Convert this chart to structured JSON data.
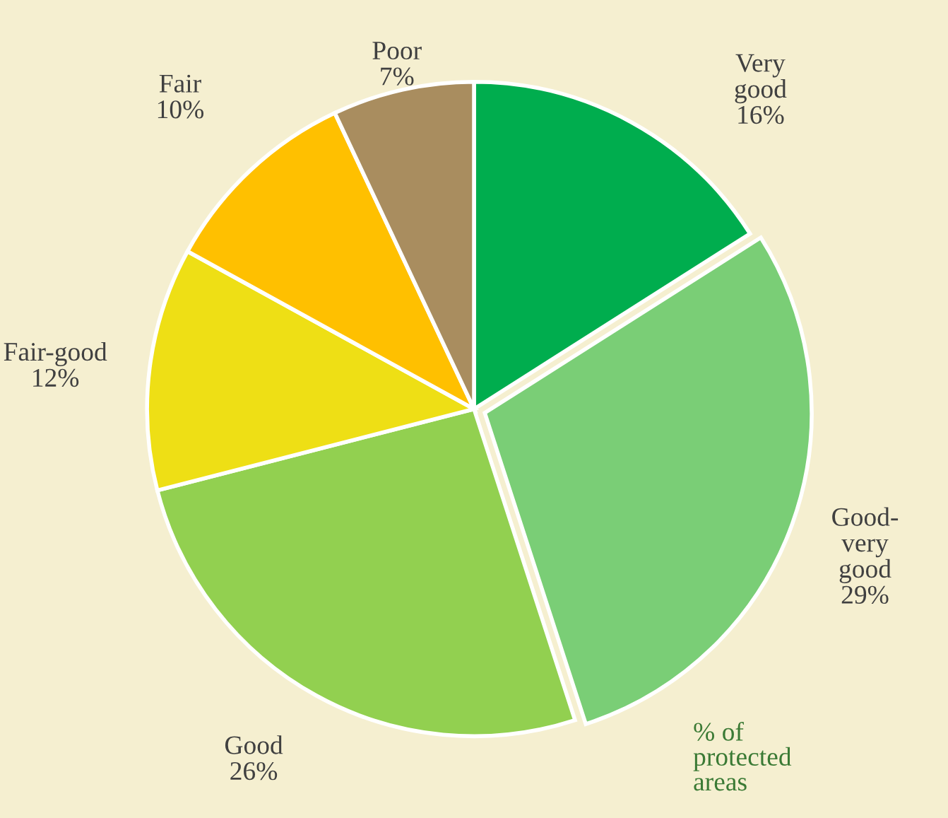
{
  "chart_data": {
    "type": "pie",
    "categories": [
      "Very good",
      "Good-very good",
      "Good",
      "Fair-good",
      "Fair",
      "Poor"
    ],
    "values": [
      16,
      29,
      26,
      12,
      10,
      7
    ],
    "value_labels": [
      "16%",
      "29%",
      "26%",
      "12%",
      "10%",
      "7%"
    ],
    "colors": [
      "#00ad4e",
      "#7ace76",
      "#92d050",
      "#eedf15",
      "#ffc000",
      "#a98d5f"
    ],
    "annotations": [
      "% of protected areas"
    ]
  }
}
